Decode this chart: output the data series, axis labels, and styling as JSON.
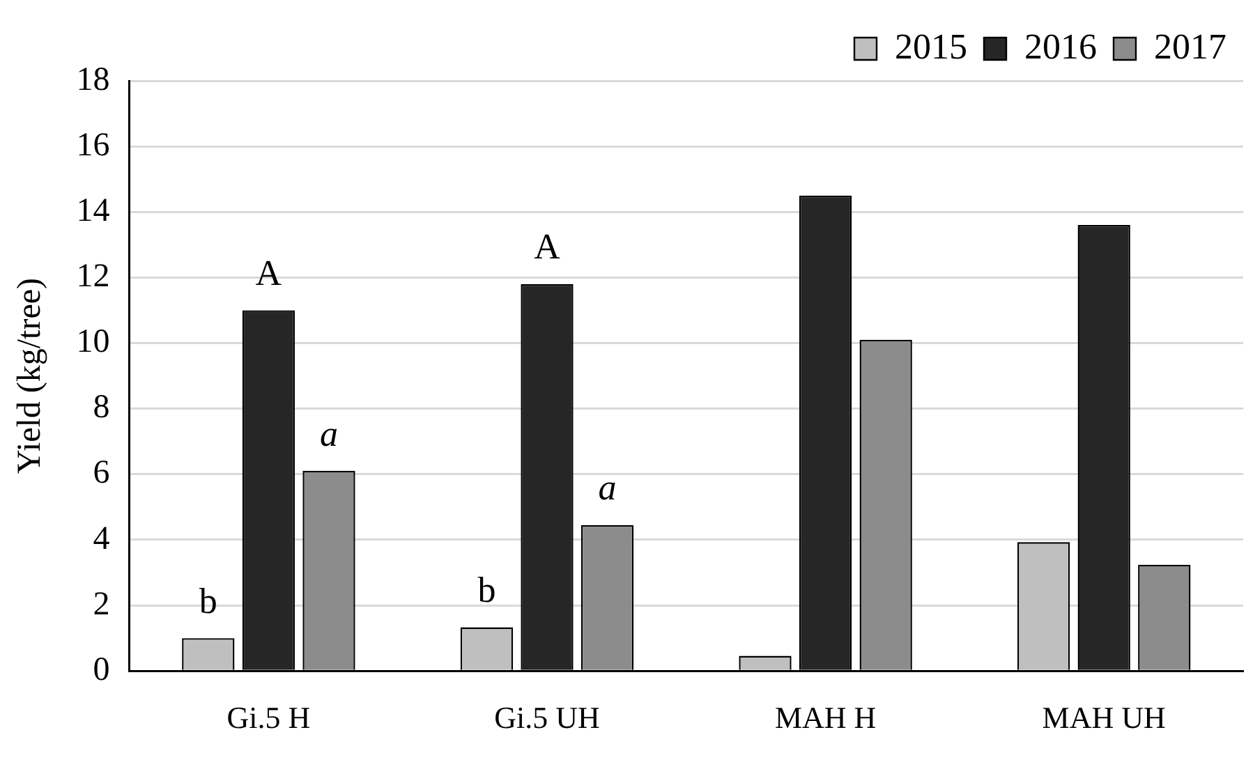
{
  "chart_data": {
    "type": "bar",
    "ylabel": "Yield (kg/tree)",
    "categories": [
      "Gi.5 H",
      "Gi.5 UH",
      "MAH H",
      "MAH UH"
    ],
    "series": [
      {
        "name": "2015",
        "color": "#bfbfbf",
        "values": [
          1.0,
          1.33,
          0.46,
          3.93
        ]
      },
      {
        "name": "2016",
        "color": "#262626",
        "values": [
          11.0,
          11.8,
          14.5,
          13.6
        ]
      },
      {
        "name": "2017",
        "color": "#8c8c8c",
        "values": [
          6.1,
          4.45,
          10.1,
          3.24
        ]
      }
    ],
    "ylim": [
      0,
      18
    ],
    "yticks": [
      0,
      2,
      4,
      6,
      8,
      10,
      12,
      14,
      16,
      18
    ],
    "grid": "y",
    "legend": "top right",
    "annotations": [
      "b",
      "A",
      "a",
      "b",
      "A",
      "a"
    ]
  }
}
